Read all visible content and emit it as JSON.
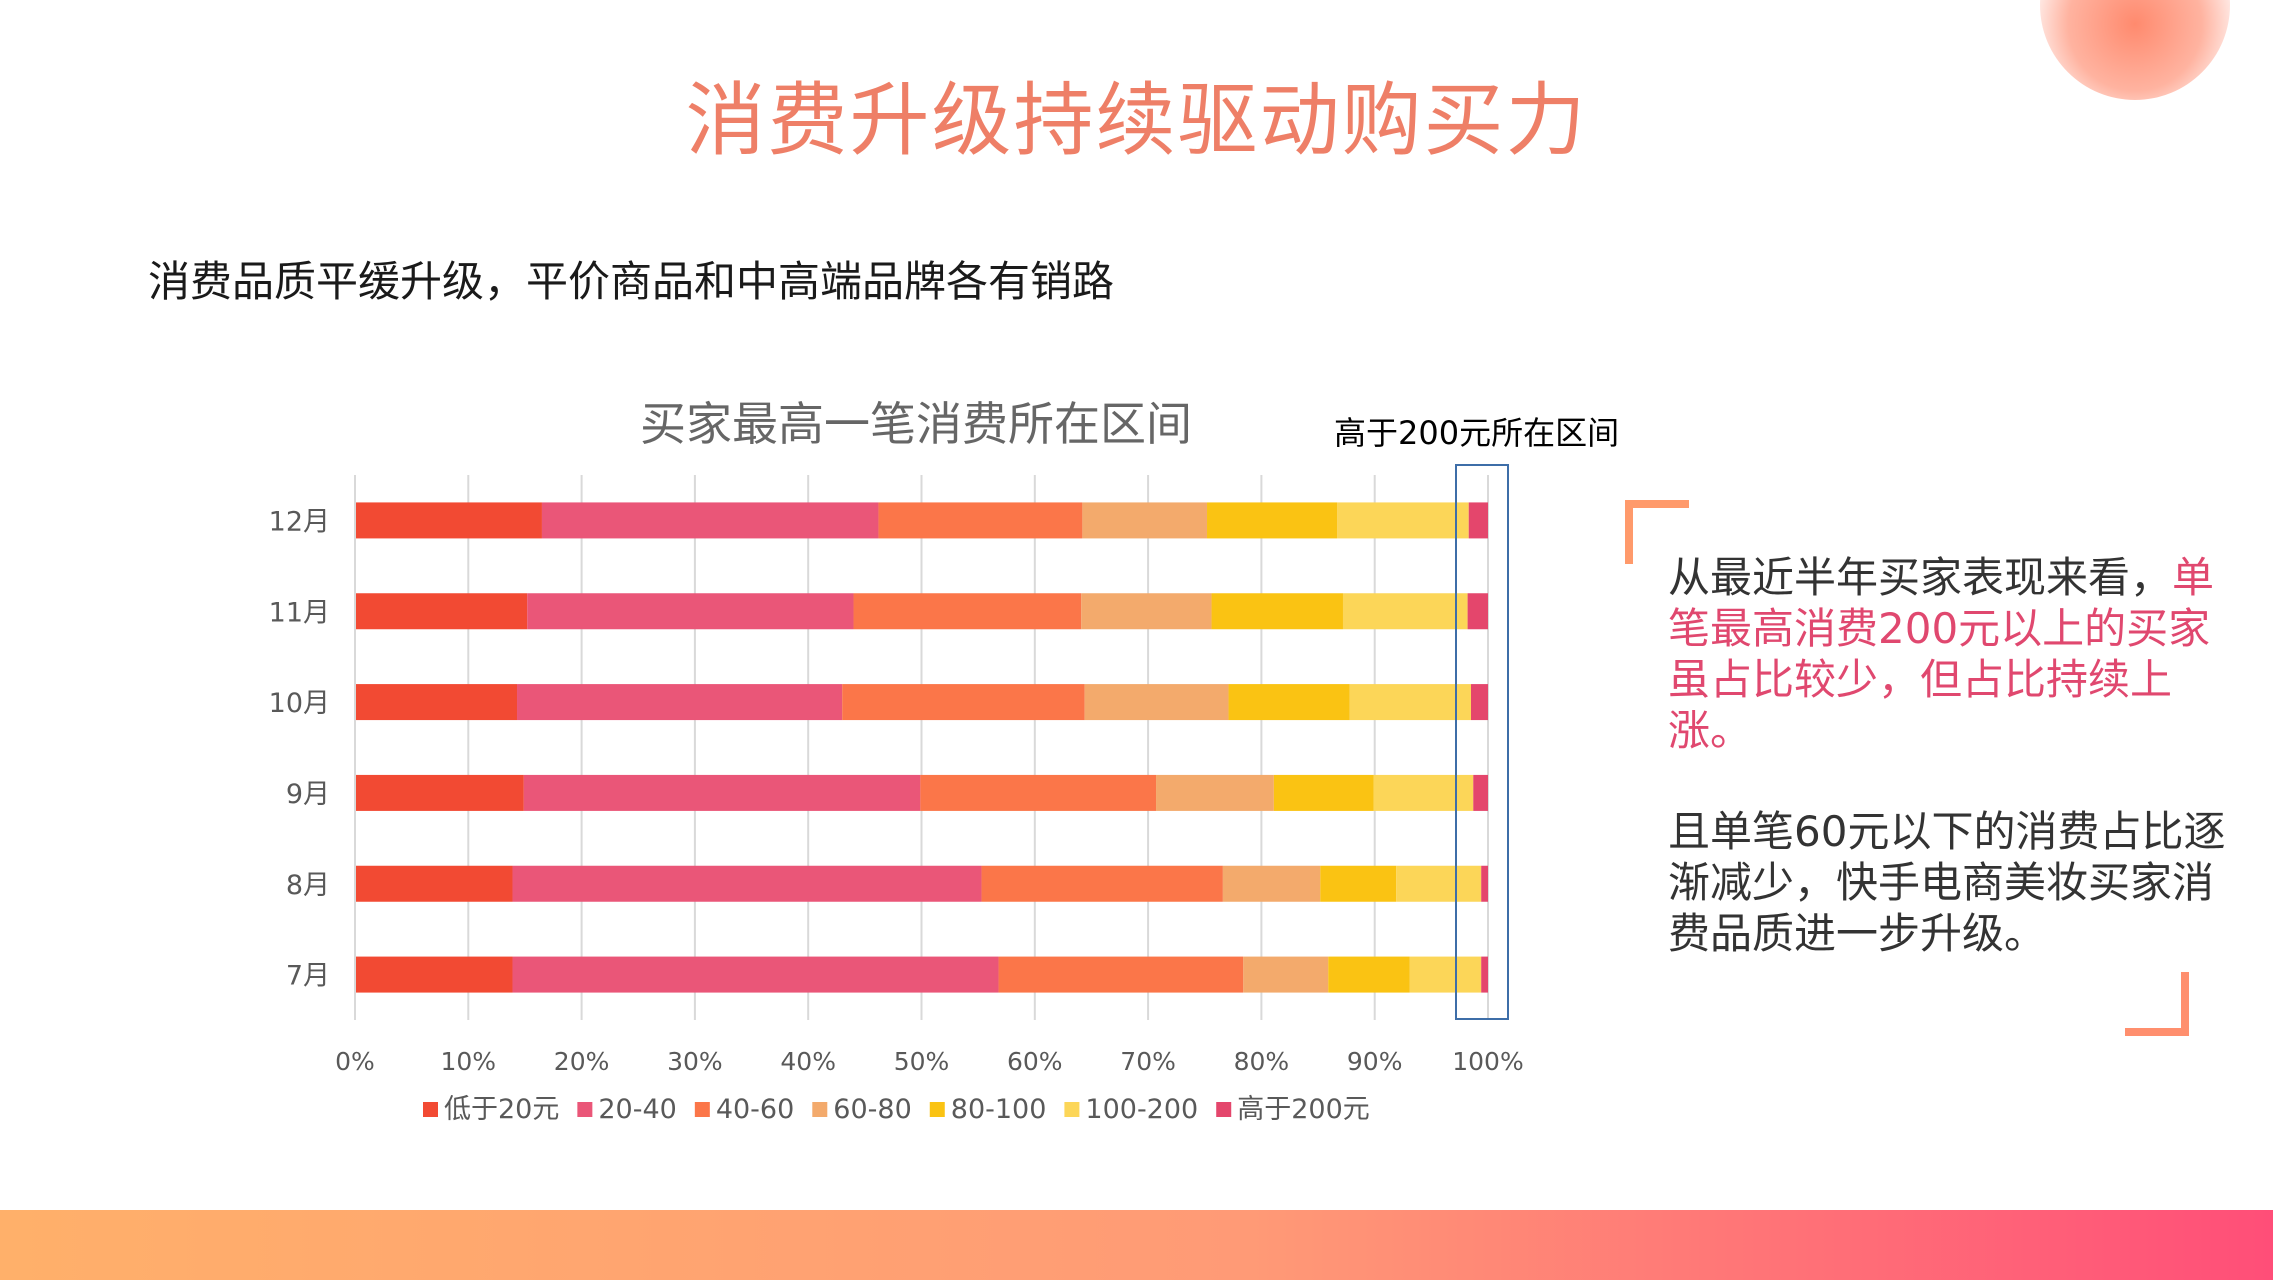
{
  "page_title": "消费升级持续驱动购买力",
  "subtitle": "消费品质平缓升级，平价商品和中高端品牌各有销路",
  "callout_label": "高于200元所在区间",
  "side_text": {
    "line1": "从最近半年买家表现来看，",
    "highlight": "单笔最高消费200元以上的买家虽占比较少，但占比持续上涨。",
    "paragraph2": "且单笔60元以下的消费占比逐渐减少，快手电商美妆买家消费品质进一步升级。"
  },
  "colors": {
    "title": "#ee7f67",
    "highlight": "#e0486f",
    "callout_box": "#3e6ea8"
  },
  "chart_data": {
    "type": "bar",
    "orientation": "horizontal",
    "stacked": true,
    "title": "买家最高一笔消费所在区间",
    "categories": [
      "12月",
      "11月",
      "10月",
      "9月",
      "8月",
      "7月"
    ],
    "xlim": [
      0,
      100
    ],
    "x_ticks": [
      "0%",
      "10%",
      "20%",
      "30%",
      "40%",
      "50%",
      "60%",
      "70%",
      "80%",
      "90%",
      "100%"
    ],
    "grid": "vertical",
    "legend_position": "bottom",
    "series": [
      {
        "name": "低于20元",
        "color": "#f24a33",
        "values": [
          16.5,
          15.2,
          14.3,
          14.9,
          13.9,
          13.9
        ]
      },
      {
        "name": "20-40",
        "color": "#ea5678",
        "values": [
          29.7,
          28.8,
          28.7,
          35.0,
          41.4,
          42.9
        ]
      },
      {
        "name": "40-60",
        "color": "#fb7649",
        "values": [
          18.0,
          20.1,
          21.4,
          20.8,
          21.3,
          21.6
        ]
      },
      {
        "name": "60-80",
        "color": "#f3aa6c",
        "values": [
          11.0,
          11.5,
          12.7,
          10.4,
          8.6,
          7.5
        ]
      },
      {
        "name": "80-100",
        "color": "#fac313",
        "values": [
          11.5,
          11.6,
          10.7,
          8.8,
          6.7,
          7.2
        ]
      },
      {
        "name": "100-200",
        "color": "#fcd658",
        "values": [
          11.6,
          11.0,
          10.7,
          8.8,
          7.5,
          6.3
        ]
      },
      {
        "name": "高于200元",
        "color": "#e4466c",
        "values": [
          1.7,
          1.8,
          1.5,
          1.3,
          0.6,
          0.6
        ]
      }
    ]
  }
}
